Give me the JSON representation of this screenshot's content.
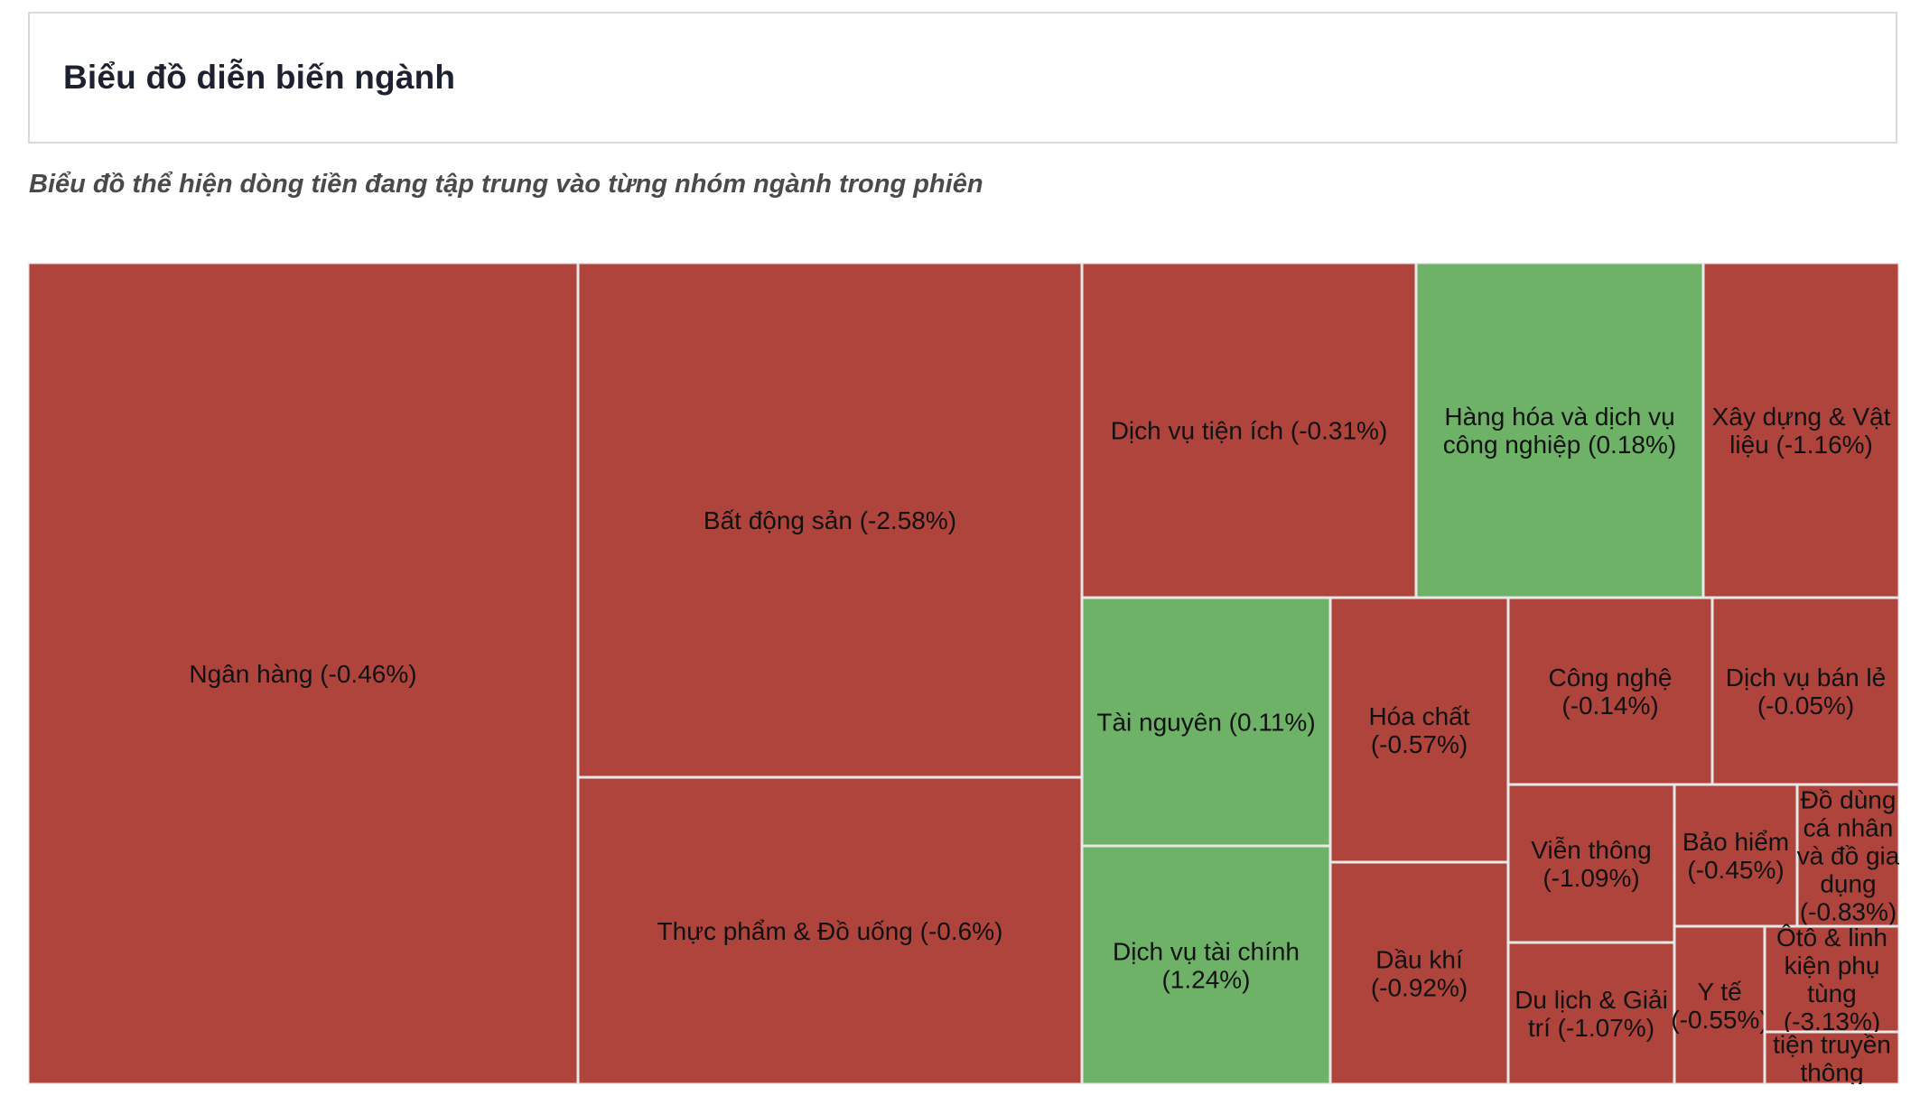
{
  "header": {
    "title": "Biểu đồ diễn biến ngành"
  },
  "subtitle": "Biểu đồ thể hiện dòng tiền đang tập trung vào từng nhóm ngành trong phiên",
  "colors": {
    "negative": "#ae443b",
    "positive": "#6db266"
  },
  "chart_data": {
    "type": "treemap",
    "title": "",
    "series": [
      {
        "name": "Ngân hàng",
        "change_pct": -0.46,
        "label_lines": [
          "Ngân hàng (-0.46%)"
        ]
      },
      {
        "name": "Bất động sản",
        "change_pct": -2.58,
        "label_lines": [
          "Bất động sản (-2.58%)"
        ]
      },
      {
        "name": "Thực phẩm & Đồ uống",
        "change_pct": -0.6,
        "label_lines": [
          "Thực phẩm & Đồ uống (-0.6%)"
        ]
      },
      {
        "name": "Dịch vụ tiện ích",
        "change_pct": -0.31,
        "label_lines": [
          "Dịch vụ tiện ích (-0.31%)"
        ]
      },
      {
        "name": "Hàng hóa và dịch vụ công nghiệp",
        "change_pct": 0.18,
        "label_lines": [
          "Hàng hóa và dịch vụ",
          "công nghiệp (0.18%)"
        ]
      },
      {
        "name": "Xây dựng & Vật liệu",
        "change_pct": -1.16,
        "label_lines": [
          "Xây dựng & Vật",
          "liệu (-1.16%)"
        ]
      },
      {
        "name": "Tài nguyên",
        "change_pct": 0.11,
        "label_lines": [
          "Tài nguyên (0.11%)"
        ]
      },
      {
        "name": "Dịch vụ tài chính",
        "change_pct": 1.24,
        "label_lines": [
          "Dịch vụ tài chính",
          "(1.24%)"
        ]
      },
      {
        "name": "Hóa chất",
        "change_pct": -0.57,
        "label_lines": [
          "Hóa chất",
          "(-0.57%)"
        ]
      },
      {
        "name": "Dầu khí",
        "change_pct": -0.92,
        "label_lines": [
          "Dầu khí",
          "(-0.92%)"
        ]
      },
      {
        "name": "Công nghệ",
        "change_pct": -0.14,
        "label_lines": [
          "Công nghệ",
          "(-0.14%)"
        ]
      },
      {
        "name": "Dịch vụ bán lẻ",
        "change_pct": -0.05,
        "label_lines": [
          "Dịch vụ bán lẻ",
          "(-0.05%)"
        ]
      },
      {
        "name": "Viễn thông",
        "change_pct": -1.09,
        "label_lines": [
          "Viễn thông",
          "(-1.09%)"
        ]
      },
      {
        "name": "Bảo hiểm",
        "change_pct": -0.45,
        "label_lines": [
          "Bảo hiểm",
          "(-0.45%)"
        ]
      },
      {
        "name": "Đồ dùng cá nhân và đồ gia dụng",
        "change_pct": -0.83,
        "label_lines": [
          "Đồ dùng",
          "cá nhân",
          "và đồ gia",
          "dụng",
          "(-0.83%)"
        ]
      },
      {
        "name": "Du lịch & Giải trí",
        "change_pct": -1.07,
        "label_lines": [
          "Du lịch & Giải",
          "trí (-1.07%)"
        ]
      },
      {
        "name": "Y tế",
        "change_pct": -0.55,
        "label_lines": [
          "Y tế",
          "(-0.55%)"
        ]
      },
      {
        "name": "Ôtô & linh kiện phụ tùng",
        "change_pct": -3.13,
        "label_lines": [
          "Ôtô & linh",
          "kiện phụ",
          "tùng",
          "(-3.13%)"
        ]
      },
      {
        "name": "Truyền thông",
        "change_pct": null,
        "label_lines": [
          "tiện truyền",
          "thông"
        ]
      }
    ]
  }
}
